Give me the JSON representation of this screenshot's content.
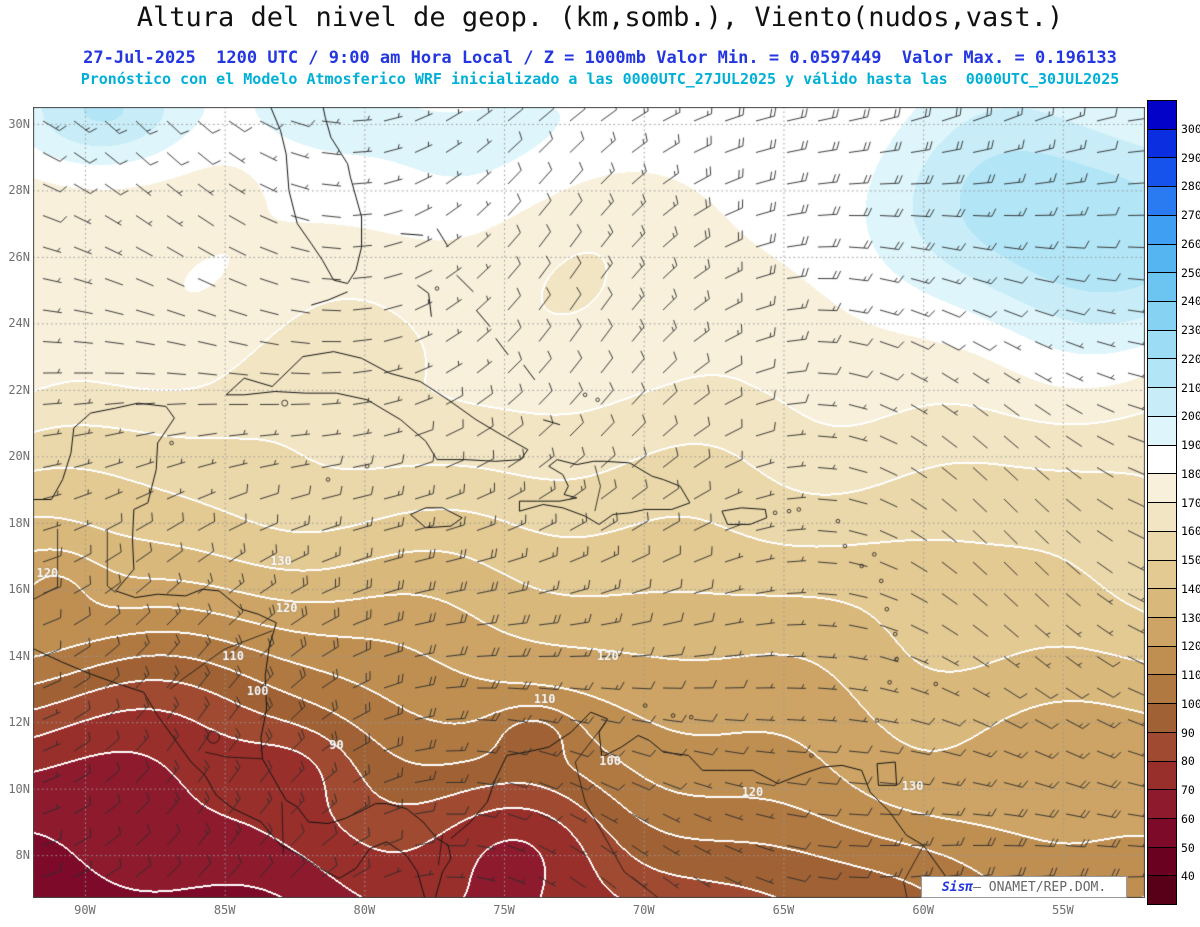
{
  "header": {
    "title": "Altura del nivel de geop. (km,somb.), Viento(nudos,vast.)",
    "subtitle1": "27-Jul-2025  1200 UTC / 9:00 am Hora Local / Z = 1000mb Valor Min. = 0.0597449  Valor Max. = 0.196133",
    "subtitle2": "Pronóstico con el Modelo Atmosferico WRF inicializado a las 0000UTC_27JUL2025 y válido hasta las  0000UTC_30JUL2025",
    "title_color": "#111111",
    "subtitle1_color": "#2336e0",
    "subtitle2_color": "#00b0d6"
  },
  "footer": {
    "brand": "Sisπ",
    "credit": "– ONAMET/REP.DOM.",
    "brand_color": "#2336e0",
    "credit_color": "#666666"
  },
  "chart_data": {
    "type": "heatmap",
    "title": "Altura del nivel de geop. (km,somb.), Viento(nudos,vast.)",
    "variable": "Altura geopotencial a 1000mb (sombreado, km) y viento (nudos, barbas)",
    "datetime_utc": "27-Jul-2025 1200 UTC",
    "datetime_local": "9:00 am Hora Local",
    "level": "1000mb",
    "valor_min": "0.0597449",
    "valor_max": "0.196133",
    "model_run": "0000UTC_27JUL2025",
    "valid_until": "0000UTC_30JUL2025",
    "lat_range_deg_n": [
      6.7,
      30.5
    ],
    "lon_range_deg_w": [
      91.9,
      52.1
    ],
    "grid": "dotted",
    "legend_position": "right",
    "y_ticks": [
      "30N",
      "28N",
      "26N",
      "24N",
      "22N",
      "20N",
      "18N",
      "16N",
      "14N",
      "12N",
      "10N",
      "8N"
    ],
    "y_tick_lats": [
      30,
      28,
      26,
      24,
      22,
      20,
      18,
      16,
      14,
      12,
      10,
      8
    ],
    "x_ticks": [
      "90W",
      "85W",
      "80W",
      "75W",
      "70W",
      "65W",
      "60W",
      "55W"
    ],
    "x_tick_lons": [
      -90,
      -85,
      -80,
      -75,
      -70,
      -65,
      -60,
      -55
    ],
    "colorbar": {
      "tick_values": [
        300,
        290,
        280,
        270,
        260,
        250,
        240,
        230,
        220,
        210,
        200,
        190,
        180,
        170,
        160,
        150,
        140,
        130,
        120,
        110,
        100,
        90,
        80,
        70,
        60,
        50,
        40
      ],
      "cell_colors_top_to_bottom": [
        "#0202c8",
        "#0a2ee0",
        "#1653ec",
        "#2a7bf2",
        "#3f9ff2",
        "#55b5f0",
        "#6cc5f0",
        "#85d2f2",
        "#9cdcf4",
        "#b2e5f6",
        "#c8edf8",
        "#def5fb",
        "#ffffff",
        "#f8f0db",
        "#f2e5c3",
        "#ebd8aa",
        "#e3c992",
        "#d9b87b",
        "#cda465",
        "#bf8f52",
        "#b07942",
        "#a06234",
        "#a04a31",
        "#992f2b",
        "#8e1a2e",
        "#7d0a28",
        "#6a0120",
        "#580018"
      ]
    },
    "contour_labels": [
      {
        "value": 120,
        "u": 0.013,
        "v": 0.59
      },
      {
        "value": 130,
        "u": 0.223,
        "v": 0.575
      },
      {
        "value": 120,
        "u": 0.228,
        "v": 0.635
      },
      {
        "value": 110,
        "u": 0.18,
        "v": 0.695
      },
      {
        "value": 100,
        "u": 0.202,
        "v": 0.74
      },
      {
        "value": 90,
        "u": 0.273,
        "v": 0.808
      },
      {
        "value": 110,
        "u": 0.46,
        "v": 0.75
      },
      {
        "value": 120,
        "u": 0.517,
        "v": 0.695
      },
      {
        "value": 100,
        "u": 0.519,
        "v": 0.828
      },
      {
        "value": 120,
        "u": 0.647,
        "v": 0.867
      },
      {
        "value": 130,
        "u": 0.791,
        "v": 0.86
      }
    ],
    "field_model": {
      "description": "Approx. geopotential field (shading, m): ~200-220 light blue NW corner and NE Atlantic, ~170-190 cream/white 24-30N, decreasing southward to dark red 60-90 over SW Caribbean / E Pacific, local tan ridge ~120-130 along Venezuela coast",
      "base_top": 180,
      "lat_slope": 28,
      "south_start": 0.35,
      "south_exp": 1.2,
      "south_coef": 120,
      "east_relief": [
        1.35,
        0.75
      ],
      "contour_interval": 10,
      "white_contour_max_level": 170,
      "bumps": [
        {
          "u": 0.88,
          "v": 0.13,
          "su": 0.11,
          "sv": 0.11,
          "a": 28
        },
        {
          "u": 1.02,
          "v": 0.17,
          "su": 0.12,
          "sv": 0.1,
          "a": 26
        },
        {
          "u": 0.07,
          "v": 0.01,
          "su": 0.06,
          "sv": 0.05,
          "a": 28
        },
        {
          "u": 0.245,
          "v": 0.0,
          "su": 0.05,
          "sv": 0.04,
          "a": 14
        },
        {
          "u": 0.38,
          "v": 0.03,
          "su": 0.14,
          "sv": 0.07,
          "a": 10
        },
        {
          "u": 0.1,
          "v": 0.8,
          "su": 0.13,
          "sv": 0.13,
          "a": -22
        },
        {
          "u": 0.44,
          "v": 0.93,
          "su": 0.06,
          "sv": 0.06,
          "a": -18
        },
        {
          "u": 0.45,
          "v": 0.79,
          "su": 0.025,
          "sv": 0.025,
          "a": -14
        },
        {
          "u": 0.24,
          "v": 0.83,
          "su": 0.04,
          "sv": 0.04,
          "a": -10
        },
        {
          "u": 0.02,
          "v": 0.6,
          "su": 0.03,
          "sv": 0.035,
          "a": -12
        },
        {
          "u": 0.82,
          "v": 0.88,
          "su": 0.09,
          "sv": 0.06,
          "a": 12
        }
      ]
    },
    "wind": {
      "units": "nudos",
      "typical_speed_kt": [
        5,
        20
      ],
      "regime": "easterly trade winds shown as barbs"
    }
  }
}
